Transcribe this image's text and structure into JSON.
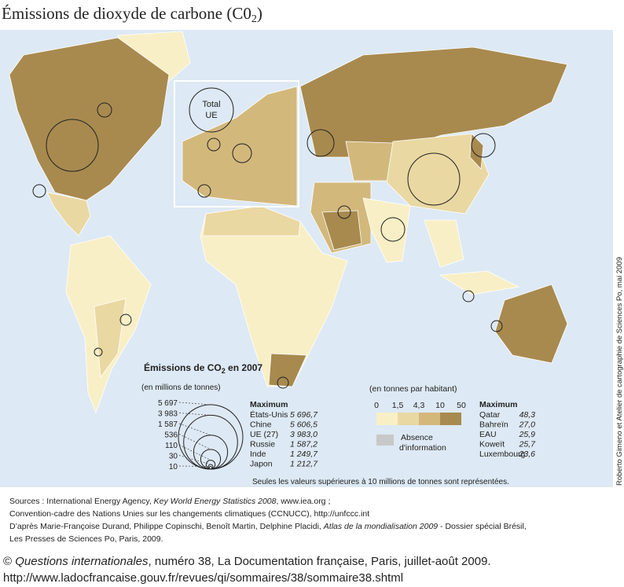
{
  "title": {
    "main": "Émissions de dioxyde de carbone (C0",
    "sub": "2",
    "end": ")"
  },
  "map": {
    "inset_label": [
      "Total",
      "UE"
    ]
  },
  "size_legend": {
    "title": {
      "main": "Émissions de CO",
      "sub": "2",
      "end": " en 2007"
    },
    "unit": "(en millions de tonnes)",
    "sizes": [
      {
        "value": 5697,
        "label": "5 697"
      },
      {
        "value": 3983,
        "label": "3 983"
      },
      {
        "value": 1587,
        "label": "1 587"
      },
      536,
      110,
      30,
      10
    ]
  },
  "max_emissions": {
    "header": "Maximum",
    "rows": [
      [
        "États-Unis",
        "5 696,7"
      ],
      [
        "Chine",
        "5 606,5"
      ],
      [
        "UE (27)",
        "3 983,0"
      ],
      [
        "Russie",
        "1 587,2"
      ],
      [
        "Inde",
        "1 249,7"
      ],
      [
        "Japon",
        "1 212,7"
      ]
    ]
  },
  "color_legend": {
    "unit": "(en tonnes par habitant)",
    "breaks": [
      "0",
      "1,5",
      "4,3",
      "10",
      "50"
    ],
    "colors": [
      "#f8efc6",
      "#ead8a3",
      "#d3b87c",
      "#a88a4f"
    ],
    "absence": [
      "Absence",
      "d'information"
    ]
  },
  "max_per_capita": {
    "header": "Maximum",
    "rows": [
      [
        "Qatar",
        "48,3"
      ],
      [
        "Bahreïn",
        "27,0"
      ],
      [
        "EAU",
        "25,9"
      ],
      [
        "Koweït",
        "25,7"
      ],
      [
        "Luxembourg",
        "23,6"
      ]
    ]
  },
  "note": "Seules les valeurs supérieures à 10 millions de tonnes sont représentées.",
  "sources": {
    "line1": [
      "Sources : International Energy Agency, ",
      "Key World Energy Statistics 2008",
      ", www.iea.org ;"
    ],
    "line2": "Convention-cadre des Nations Unies sur les changements climatiques (CCNUCC), http://unfccc.int",
    "line3": [
      "D’après Marie-Françoise Durand, Philippe Copinschi, Benoît Martin, Delphine Placidi, ",
      "Atlas de la mondialisation 2009",
      " - Dossier spécial Brésil,"
    ],
    "line4": "Les Presses de Sciences Po, Paris, 2009."
  },
  "credit": "Roberto Gimeno et Atelier de cartographie de Sciences Po, mai 2009",
  "footer": {
    "line1": [
      "© ",
      "Questions internationales",
      ", numéro 38, La Documentation française, Paris, juillet-août 2009."
    ],
    "line2": "http://www.ladocfrancaise.gouv.fr/revues/qi/sommaires/38/sommaire38.shtml"
  }
}
